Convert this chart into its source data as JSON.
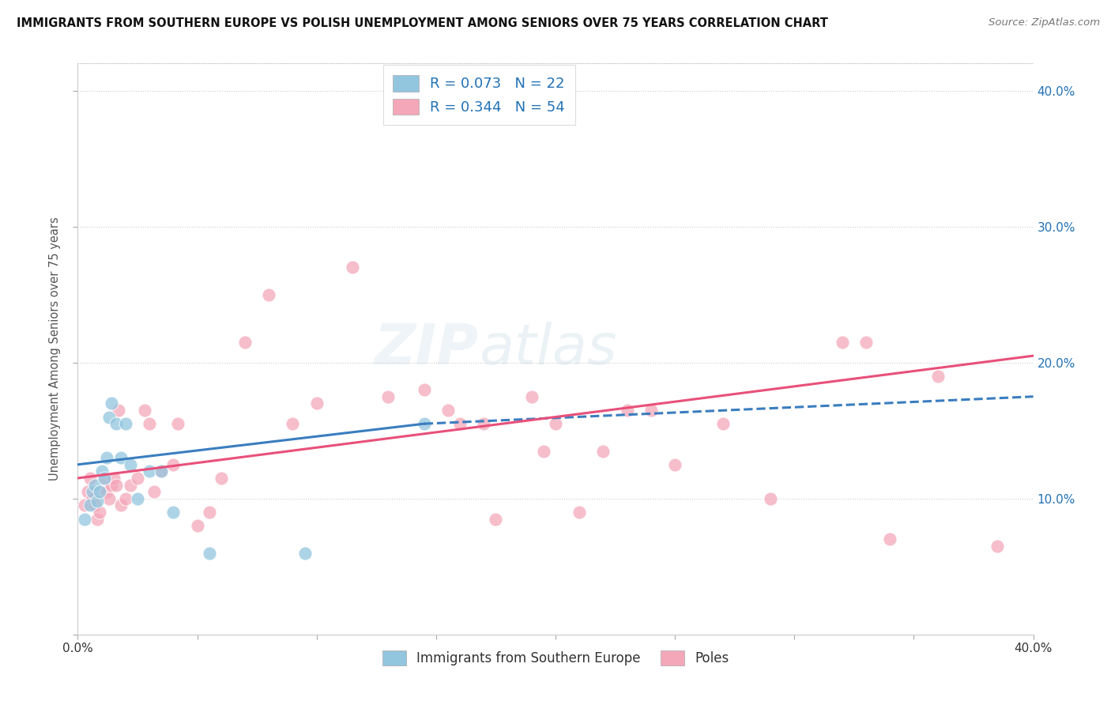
{
  "title": "IMMIGRANTS FROM SOUTHERN EUROPE VS POLISH UNEMPLOYMENT AMONG SENIORS OVER 75 YEARS CORRELATION CHART",
  "source": "Source: ZipAtlas.com",
  "ylabel": "Unemployment Among Seniors over 75 years",
  "xlim": [
    0.0,
    0.4
  ],
  "ylim": [
    0.0,
    0.42
  ],
  "xticks": [
    0.0,
    0.05,
    0.1,
    0.15,
    0.2,
    0.25,
    0.3,
    0.35,
    0.4
  ],
  "xticklabels": [
    "0.0%",
    "",
    "",
    "",
    "",
    "",
    "",
    "",
    "40.0%"
  ],
  "yticks": [
    0.0,
    0.1,
    0.2,
    0.3,
    0.4
  ],
  "yticklabels_right": [
    "",
    "10.0%",
    "20.0%",
    "30.0%",
    "40.0%"
  ],
  "color_blue": "#92c5de",
  "color_pink": "#f4a7b9",
  "color_blue_line": "#3a7dbf",
  "color_pink_line": "#e8507a",
  "color_blue_text": "#2171b5",
  "background": "#ffffff",
  "blue_x": [
    0.003,
    0.005,
    0.006,
    0.007,
    0.008,
    0.009,
    0.01,
    0.011,
    0.012,
    0.013,
    0.014,
    0.016,
    0.018,
    0.02,
    0.022,
    0.025,
    0.03,
    0.035,
    0.04,
    0.055,
    0.095,
    0.145
  ],
  "blue_y": [
    0.085,
    0.095,
    0.105,
    0.11,
    0.098,
    0.105,
    0.12,
    0.115,
    0.13,
    0.16,
    0.17,
    0.155,
    0.13,
    0.155,
    0.125,
    0.1,
    0.12,
    0.12,
    0.09,
    0.06,
    0.06,
    0.155
  ],
  "pink_x": [
    0.003,
    0.004,
    0.005,
    0.006,
    0.007,
    0.008,
    0.009,
    0.01,
    0.011,
    0.012,
    0.013,
    0.014,
    0.015,
    0.016,
    0.017,
    0.018,
    0.02,
    0.022,
    0.025,
    0.028,
    0.03,
    0.032,
    0.035,
    0.04,
    0.042,
    0.05,
    0.055,
    0.06,
    0.07,
    0.08,
    0.09,
    0.1,
    0.115,
    0.13,
    0.145,
    0.155,
    0.16,
    0.17,
    0.175,
    0.19,
    0.195,
    0.2,
    0.21,
    0.22,
    0.23,
    0.24,
    0.25,
    0.27,
    0.29,
    0.32,
    0.33,
    0.34,
    0.36,
    0.385
  ],
  "pink_y": [
    0.095,
    0.105,
    0.115,
    0.1,
    0.095,
    0.085,
    0.09,
    0.105,
    0.115,
    0.105,
    0.1,
    0.11,
    0.115,
    0.11,
    0.165,
    0.095,
    0.1,
    0.11,
    0.115,
    0.165,
    0.155,
    0.105,
    0.12,
    0.125,
    0.155,
    0.08,
    0.09,
    0.115,
    0.215,
    0.25,
    0.155,
    0.17,
    0.27,
    0.175,
    0.18,
    0.165,
    0.155,
    0.155,
    0.085,
    0.175,
    0.135,
    0.155,
    0.09,
    0.135,
    0.165,
    0.165,
    0.125,
    0.155,
    0.1,
    0.215,
    0.215,
    0.07,
    0.19,
    0.065
  ],
  "blue_line_x0": 0.0,
  "blue_line_y0": 0.125,
  "blue_line_x1_solid": 0.145,
  "blue_line_y1_solid": 0.155,
  "blue_line_x1_dash": 0.4,
  "blue_line_y1_dash": 0.175,
  "pink_line_x0": 0.0,
  "pink_line_y0": 0.115,
  "pink_line_x1": 0.4,
  "pink_line_y1": 0.205
}
